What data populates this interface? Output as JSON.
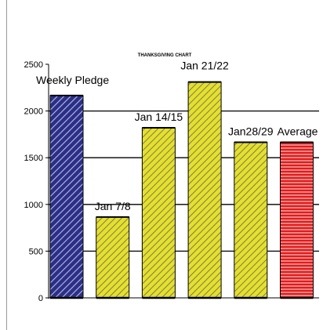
{
  "chart_data": {
    "type": "bar",
    "title": "THANKSGIVING CHART",
    "categories": [
      "Weekly Pledge",
      "Jan 7/8",
      "Jan 14/15",
      "Jan 21/22",
      "Jan28/29",
      "Average"
    ],
    "values": [
      2165,
      865,
      1820,
      2310,
      1665,
      1665
    ],
    "ylim": [
      0,
      2500
    ],
    "yticks": [
      "0",
      "500",
      "1000",
      "1500",
      "2000",
      "2500"
    ],
    "xlabel": "",
    "ylabel": "",
    "grid": true,
    "legend": "none",
    "colors": {
      "pledge": "#2b2f86",
      "weeks": "#e5e02a",
      "average": "#e21b1b",
      "hatch_pledge": "#b8bde8",
      "hatch_weeks": "#7a7a60",
      "hatch_average": "#f4b0b0"
    }
  }
}
